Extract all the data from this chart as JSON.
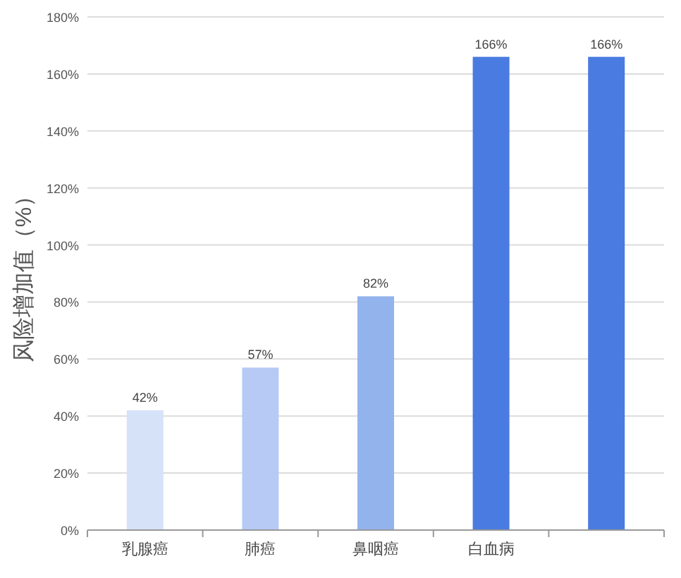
{
  "chart_data": {
    "type": "bar",
    "ylabel": "风险增加值（%）",
    "categories": [
      "乳腺癌",
      "肺癌",
      "鼻咽癌",
      "白血病",
      null
    ],
    "values": [
      42,
      57,
      82,
      166,
      166
    ],
    "colors": [
      "#d6e2f8",
      "#b6caf5",
      "#93b3ec",
      "#4a7be0",
      "#4a7be0"
    ],
    "value_labels": [
      "42%",
      "57%",
      "82%",
      "166%",
      "166%"
    ],
    "ylim": [
      0,
      180
    ],
    "yticks": [
      {
        "value": 0,
        "label": "0%"
      },
      {
        "value": 20,
        "label": "20%"
      },
      {
        "value": 40,
        "label": "40%"
      },
      {
        "value": 60,
        "label": "60%"
      },
      {
        "value": 80,
        "label": "80%"
      },
      {
        "value": 100,
        "label": "100%"
      },
      {
        "value": 120,
        "label": "120%"
      },
      {
        "value": 140,
        "label": "140%"
      },
      {
        "value": 160,
        "label": "160%"
      },
      {
        "value": 180,
        "label": "180%"
      }
    ],
    "grid": "y"
  }
}
